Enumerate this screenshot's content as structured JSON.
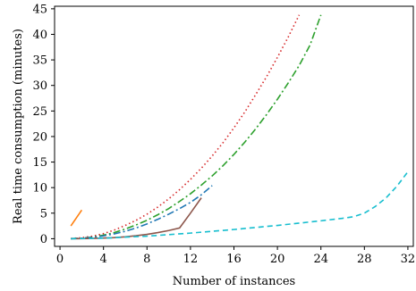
{
  "chart_data": {
    "type": "line",
    "title": "",
    "xlabel": "Number of instances",
    "ylabel": "Real time consumption (minutes)",
    "xlim": [
      -0.5,
      32.5
    ],
    "ylim": [
      -1.5,
      45.5
    ],
    "x_ticks": [
      0,
      4,
      8,
      12,
      16,
      20,
      24,
      28,
      32
    ],
    "y_ticks": [
      0,
      5,
      10,
      15,
      20,
      25,
      30,
      35,
      40,
      45
    ],
    "grid": false,
    "legend": "none",
    "series": [
      {
        "color": "#ff7f0e",
        "dash": "solid",
        "x": [
          1,
          2
        ],
        "y": [
          2.5,
          5.6
        ]
      },
      {
        "color": "#d62728",
        "dash": "dotted",
        "x": [
          1,
          2,
          3,
          4,
          5,
          6,
          7,
          8,
          9,
          10,
          11,
          12,
          13,
          14,
          15,
          16,
          17,
          18,
          19,
          20,
          21,
          22
        ],
        "y": [
          0.05,
          0.2,
          0.5,
          1.0,
          1.7,
          2.6,
          3.6,
          4.8,
          6.2,
          7.8,
          9.6,
          11.6,
          13.8,
          16.2,
          18.8,
          21.7,
          24.8,
          28.2,
          31.7,
          35.5,
          39.5,
          43.8
        ]
      },
      {
        "color": "#2ca02c",
        "dash": "dashdot",
        "x": [
          1,
          2,
          3,
          4,
          5,
          6,
          7,
          8,
          9,
          10,
          11,
          12,
          13,
          14,
          15,
          16,
          17,
          18,
          19,
          20,
          21,
          22,
          23,
          24
        ],
        "y": [
          0.02,
          0.1,
          0.3,
          0.7,
          1.2,
          1.9,
          2.7,
          3.6,
          4.7,
          5.9,
          7.3,
          8.8,
          10.5,
          12.3,
          14.3,
          16.5,
          18.9,
          21.5,
          24.3,
          27.3,
          30.5,
          33.9,
          37.9,
          43.8
        ]
      },
      {
        "color": "#1f77b4",
        "dash": "dashdot",
        "x": [
          1,
          2,
          3,
          4,
          5,
          6,
          7,
          8,
          9,
          10,
          11,
          12,
          13,
          14
        ],
        "y": [
          0.02,
          0.1,
          0.25,
          0.55,
          0.95,
          1.45,
          2.1,
          2.9,
          3.8,
          4.8,
          5.9,
          7.1,
          8.6,
          10.4
        ]
      },
      {
        "color": "#8c564b",
        "dash": "solid",
        "x": [
          1,
          2,
          3,
          4,
          5,
          6,
          7,
          8,
          9,
          10,
          11,
          12,
          13
        ],
        "y": [
          0.0,
          0.02,
          0.06,
          0.12,
          0.22,
          0.37,
          0.58,
          0.85,
          1.2,
          1.6,
          2.1,
          5.0,
          8.0
        ]
      },
      {
        "color": "#17becf",
        "dash": "dashed",
        "x": [
          1,
          4,
          8,
          12,
          16,
          20,
          24,
          26,
          27,
          28,
          29,
          30,
          31,
          32
        ],
        "y": [
          0.0,
          0.1,
          0.5,
          1.1,
          1.8,
          2.6,
          3.5,
          4.0,
          4.3,
          5.0,
          6.3,
          8.0,
          10.3,
          13.1
        ]
      }
    ]
  }
}
